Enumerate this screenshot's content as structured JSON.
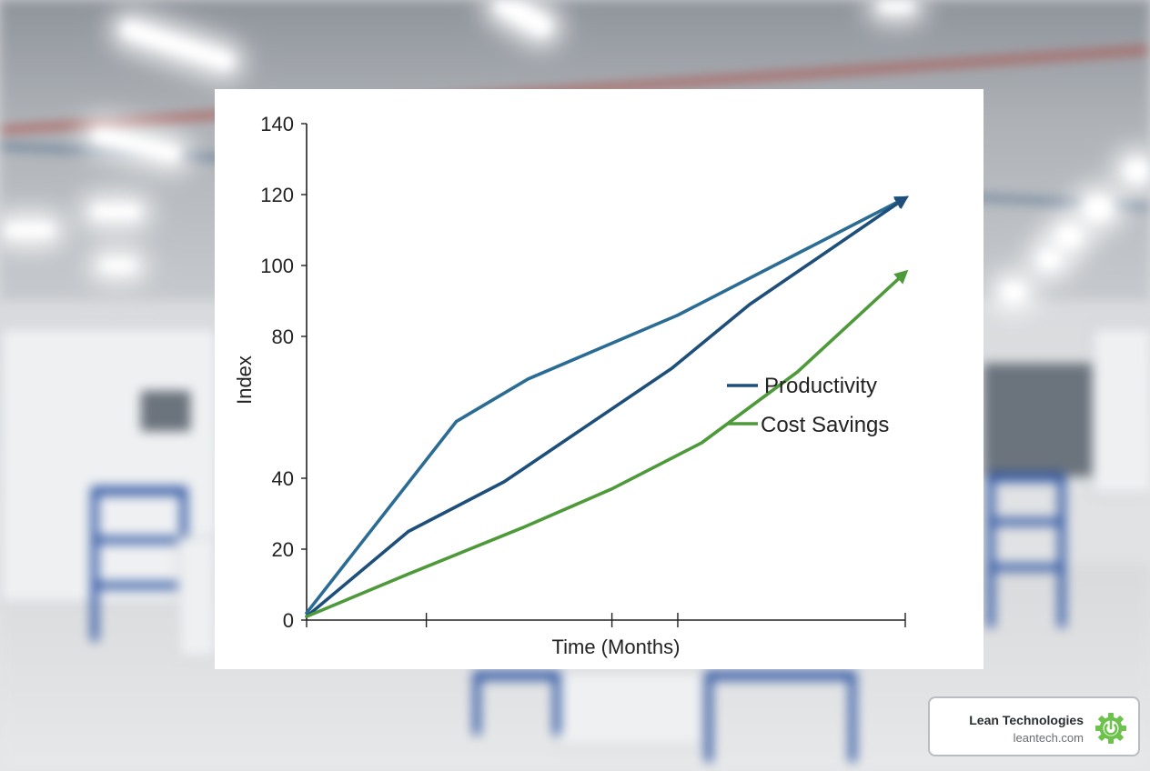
{
  "chart_data": {
    "type": "line",
    "title": "",
    "xlabel": "Time (Months)",
    "ylabel": "Index",
    "ylim": [
      0,
      140
    ],
    "y_ticks": [
      0,
      20,
      40,
      80,
      100,
      120,
      140
    ],
    "y_tick_labels": [
      "0",
      "20",
      "40",
      "80",
      "100",
      "120",
      "140"
    ],
    "xlim": [
      0,
      10
    ],
    "x_ticks": [
      0,
      2,
      5.1,
      6.2,
      10
    ],
    "grid": false,
    "legend": "center-right",
    "arrow_ends": true,
    "series": [
      {
        "name": "",
        "color": "#2b6c94",
        "x": [
          0,
          2.5,
          3.7,
          6.2,
          10
        ],
        "y": [
          2,
          56,
          68,
          86,
          119
        ]
      },
      {
        "name": "Productivity",
        "color": "#1d4f7a",
        "x": [
          0,
          1.7,
          3.3,
          6.1,
          7.4,
          10
        ],
        "y": [
          1,
          25,
          39,
          71,
          89,
          119
        ]
      },
      {
        "name": "Cost Savings",
        "color": "#4e9a3a",
        "x": [
          0,
          1.7,
          3.6,
          5.1,
          6.6,
          8.2,
          10
        ],
        "y": [
          1,
          13,
          26,
          37,
          50,
          70,
          98
        ]
      }
    ]
  },
  "brand": {
    "name": "Lean Technologies",
    "url": "leantech.com",
    "icon": "power-gear-icon",
    "accent": "#6cc24a"
  }
}
